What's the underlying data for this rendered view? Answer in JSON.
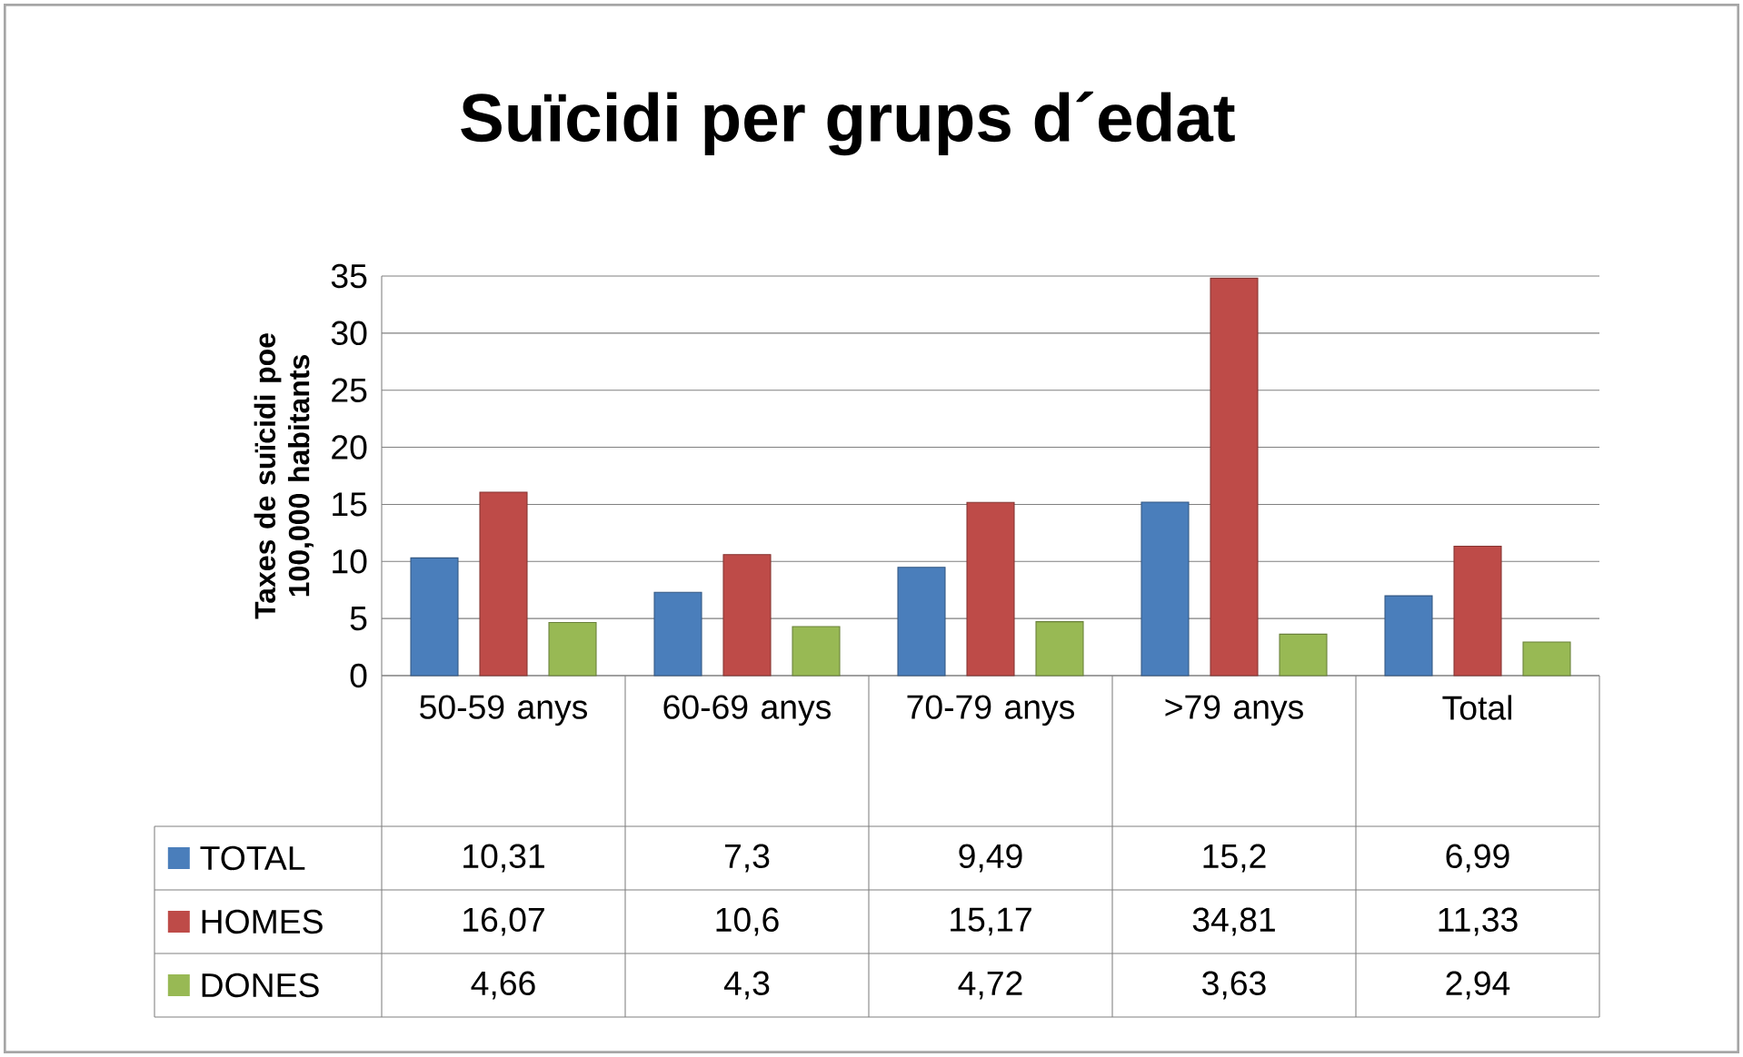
{
  "chart_data": {
    "type": "bar",
    "title": "Suïcidi per grups d´edat",
    "ylabel": "Taxes de suïcidi  poe 100,000 habitants",
    "categories": [
      "50-59 anys",
      "60-69 anys",
      "70-79 anys",
      ">79 anys",
      "Total"
    ],
    "series": [
      {
        "name": "TOTAL",
        "color": "#4a7ebb",
        "values": [
          10.31,
          7.3,
          9.49,
          15.2,
          6.99
        ],
        "value_labels": [
          "10,31",
          "7,3",
          "9,49",
          "15,2",
          "6,99"
        ]
      },
      {
        "name": "HOMES",
        "color": "#be4b48",
        "values": [
          16.07,
          10.6,
          15.17,
          34.81,
          11.33
        ],
        "value_labels": [
          "16,07",
          "10,6",
          "15,17",
          "34,81",
          "11,33"
        ]
      },
      {
        "name": "DONES",
        "color": "#98b954",
        "values": [
          4.66,
          4.3,
          4.72,
          3.63,
          2.94
        ],
        "value_labels": [
          "4,66",
          "4,3",
          "4,72",
          "3,63",
          "2,94"
        ]
      }
    ],
    "ylim": [
      0,
      35
    ],
    "yticks": [
      0,
      5,
      10,
      15,
      20,
      25,
      30,
      35
    ],
    "grid": "y",
    "legend": "bottom left"
  }
}
